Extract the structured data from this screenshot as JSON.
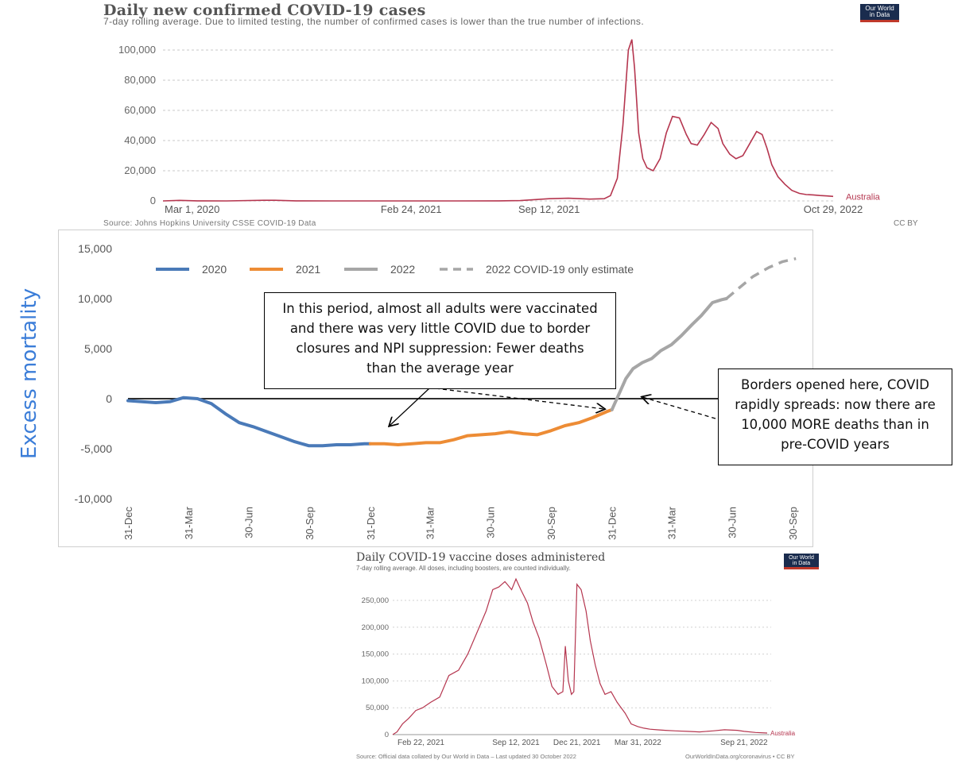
{
  "chart_data": [
    {
      "type": "line",
      "title": "Daily new confirmed COVID-19 cases",
      "subtitle": "7-day rolling average. Due to limited testing, the number of confirmed cases is lower than the true number of infections.",
      "source": "Source: Johns Hopkins University CSSE COVID-19 Data",
      "license": "CC BY",
      "logo_text": [
        "Our World",
        "in Data"
      ],
      "series_label": "Australia",
      "color": "#b5364f",
      "ylim": [
        0,
        110000
      ],
      "y_ticks": [
        0,
        20000,
        40000,
        60000,
        80000,
        100000
      ],
      "y_tick_labels": [
        "0",
        "20,000",
        "40,000",
        "60,000",
        "80,000",
        "100,000"
      ],
      "x_tick_labels": [
        "Mar 1, 2020",
        "Feb 24, 2021",
        "Sep 12, 2021",
        "Oct 29, 2022"
      ],
      "x_tick_dates": [
        "2020-03-01",
        "2021-02-24",
        "2021-09-12",
        "2022-10-29"
      ],
      "x": [
        "2020-03-01",
        "2020-03-25",
        "2020-04-20",
        "2020-06-01",
        "2020-07-25",
        "2020-08-10",
        "2020-09-10",
        "2020-11-01",
        "2021-01-10",
        "2021-03-01",
        "2021-05-01",
        "2021-07-01",
        "2021-08-01",
        "2021-09-12",
        "2021-10-10",
        "2021-11-10",
        "2021-12-01",
        "2021-12-10",
        "2021-12-20",
        "2021-12-28",
        "2022-01-05",
        "2022-01-10",
        "2022-01-14",
        "2022-01-20",
        "2022-01-26",
        "2022-02-01",
        "2022-02-10",
        "2022-02-20",
        "2022-03-01",
        "2022-03-10",
        "2022-03-20",
        "2022-03-30",
        "2022-04-06",
        "2022-04-15",
        "2022-04-25",
        "2022-05-05",
        "2022-05-15",
        "2022-05-22",
        "2022-06-01",
        "2022-06-10",
        "2022-06-20",
        "2022-06-30",
        "2022-07-10",
        "2022-07-18",
        "2022-07-25",
        "2022-08-01",
        "2022-08-10",
        "2022-08-20",
        "2022-08-30",
        "2022-09-10",
        "2022-09-20",
        "2022-09-30",
        "2022-10-10",
        "2022-10-20",
        "2022-10-29"
      ],
      "values": [
        20,
        350,
        50,
        10,
        400,
        420,
        50,
        10,
        20,
        10,
        15,
        60,
        200,
        1500,
        1800,
        1200,
        1500,
        3500,
        15000,
        50000,
        100000,
        107000,
        88000,
        45000,
        28000,
        22000,
        20000,
        28000,
        45000,
        56000,
        55000,
        44000,
        38000,
        37000,
        44000,
        52000,
        48000,
        38000,
        31000,
        28000,
        30000,
        38000,
        46000,
        44000,
        35000,
        24000,
        16000,
        11000,
        7000,
        5000,
        4200,
        4000,
        3600,
        3300,
        3000
      ]
    },
    {
      "type": "line",
      "ylabel": "Excess mortality",
      "ylim": [
        -10000,
        15000
      ],
      "y_ticks": [
        -10000,
        -5000,
        0,
        5000,
        10000,
        15000
      ],
      "y_tick_labels": [
        "-10,000",
        "-5,000",
        "0",
        "5,000",
        "10,000",
        "15,000"
      ],
      "x_tick_labels": [
        "31-Dec",
        "31-Mar",
        "30-Jun",
        "30-Sep",
        "31-Dec",
        "31-Mar",
        "30-Jun",
        "30-Sep",
        "31-Dec",
        "31-Mar",
        "30-Jun",
        "30-Sep"
      ],
      "x_tick_dates": [
        "2019-12-31",
        "2020-03-31",
        "2020-06-30",
        "2020-09-30",
        "2020-12-31",
        "2021-03-31",
        "2021-06-30",
        "2021-09-30",
        "2021-12-31",
        "2022-03-31",
        "2022-06-30",
        "2022-09-30"
      ],
      "legend_position": "top",
      "series": [
        {
          "name": "2020",
          "color": "#4a7ab8",
          "style": "solid",
          "x": [
            "2019-12-31",
            "2020-01-21",
            "2020-02-11",
            "2020-03-03",
            "2020-03-24",
            "2020-04-14",
            "2020-05-05",
            "2020-05-26",
            "2020-06-16",
            "2020-07-07",
            "2020-07-28",
            "2020-08-18",
            "2020-09-08",
            "2020-09-29",
            "2020-10-20",
            "2020-11-10",
            "2020-12-01",
            "2020-12-22",
            "2020-12-31"
          ],
          "values": [
            -200,
            -300,
            -400,
            -300,
            100,
            0,
            -500,
            -1500,
            -2400,
            -2800,
            -3300,
            -3800,
            -4300,
            -4700,
            -4700,
            -4600,
            -4600,
            -4500,
            -4500
          ]
        },
        {
          "name": "2021",
          "color": "#ed8c35",
          "style": "solid",
          "x": [
            "2020-12-31",
            "2021-01-21",
            "2021-02-11",
            "2021-03-04",
            "2021-03-25",
            "2021-04-15",
            "2021-05-06",
            "2021-05-27",
            "2021-06-17",
            "2021-07-08",
            "2021-07-29",
            "2021-08-19",
            "2021-09-09",
            "2021-09-30",
            "2021-10-21",
            "2021-11-11",
            "2021-12-02",
            "2021-12-23",
            "2021-12-31"
          ],
          "values": [
            -4500,
            -4500,
            -4600,
            -4500,
            -4400,
            -4400,
            -4100,
            -3700,
            -3600,
            -3500,
            -3300,
            -3500,
            -3600,
            -3200,
            -2700,
            -2400,
            -1900,
            -1300,
            -1100
          ]
        },
        {
          "name": "2022",
          "color": "#a6a6a6",
          "style": "solid",
          "x": [
            "2021-12-31",
            "2022-01-11",
            "2022-01-21",
            "2022-02-01",
            "2022-02-15",
            "2022-03-01",
            "2022-03-15",
            "2022-03-31",
            "2022-04-15",
            "2022-05-01",
            "2022-05-15",
            "2022-06-01",
            "2022-06-15",
            "2022-06-22"
          ],
          "values": [
            -1100,
            500,
            2000,
            3000,
            3600,
            4000,
            4800,
            5400,
            6300,
            7400,
            8300,
            9600,
            9900,
            10000
          ]
        },
        {
          "name": "2022 COVID-19 only estimate",
          "color": "#a6a6a6",
          "style": "dashed",
          "x": [
            "2022-06-22",
            "2022-07-10",
            "2022-08-01",
            "2022-08-25",
            "2022-09-15",
            "2022-10-05"
          ],
          "values": [
            10000,
            11000,
            12200,
            13100,
            13700,
            14000
          ]
        }
      ],
      "annotations": [
        "In this period, almost all adults were vaccinated and there was very little COVID due to border closures and NPI suppression: Fewer deaths than the average year",
        "Borders opened here, COVID rapidly spreads: now there are 10,000 MORE deaths than in pre-COVID years"
      ]
    },
    {
      "type": "line",
      "title": "Daily COVID-19 vaccine doses administered",
      "subtitle": "7-day rolling average. All doses, including boosters, are counted individually.",
      "source": "Source: Official data collated by Our World in Data – Last updated 30 October 2022",
      "footer_right": "OurWorldInData.org/coronavirus • CC BY",
      "logo_text": [
        "Our World",
        "in Data"
      ],
      "series_label": "Australia",
      "color": "#b5364f",
      "ylim": [
        0,
        290000
      ],
      "y_ticks": [
        0,
        50000,
        100000,
        150000,
        200000,
        250000
      ],
      "y_tick_labels": [
        "0",
        "50,000",
        "100,000",
        "150,000",
        "200,000",
        "250,000"
      ],
      "x_tick_labels": [
        "Feb 22, 2021",
        "Sep 12, 2021",
        "Dec 21, 2021",
        "Mar 31, 2022",
        "Sep 21, 2022"
      ],
      "x_tick_dates": [
        "2021-02-22",
        "2021-09-12",
        "2021-12-21",
        "2022-03-31",
        "2022-09-21"
      ],
      "x": [
        "2021-02-22",
        "2021-03-01",
        "2021-03-10",
        "2021-03-20",
        "2021-04-01",
        "2021-04-12",
        "2021-04-25",
        "2021-05-10",
        "2021-05-25",
        "2021-06-10",
        "2021-06-25",
        "2021-07-10",
        "2021-07-25",
        "2021-08-05",
        "2021-08-15",
        "2021-08-25",
        "2021-09-05",
        "2021-09-12",
        "2021-09-20",
        "2021-10-01",
        "2021-10-10",
        "2021-10-20",
        "2021-11-01",
        "2021-11-10",
        "2021-11-20",
        "2021-11-28",
        "2021-12-02",
        "2021-12-07",
        "2021-12-12",
        "2021-12-16",
        "2021-12-21",
        "2021-12-28",
        "2022-01-05",
        "2022-01-12",
        "2022-01-20",
        "2022-01-28",
        "2022-02-05",
        "2022-02-15",
        "2022-02-25",
        "2022-03-10",
        "2022-03-20",
        "2022-03-31",
        "2022-04-10",
        "2022-04-20",
        "2022-05-01",
        "2022-05-15",
        "2022-06-01",
        "2022-06-20",
        "2022-07-10",
        "2022-08-01",
        "2022-08-20",
        "2022-09-10",
        "2022-09-21",
        "2022-10-10",
        "2022-10-29"
      ],
      "values": [
        0,
        5000,
        20000,
        30000,
        45000,
        50000,
        60000,
        70000,
        110000,
        120000,
        150000,
        190000,
        230000,
        270000,
        275000,
        285000,
        270000,
        290000,
        270000,
        245000,
        210000,
        180000,
        130000,
        90000,
        75000,
        80000,
        165000,
        100000,
        75000,
        80000,
        280000,
        270000,
        230000,
        175000,
        130000,
        95000,
        75000,
        80000,
        60000,
        40000,
        20000,
        15000,
        12000,
        10000,
        9000,
        8000,
        7000,
        6000,
        5000,
        7000,
        9000,
        8000,
        6000,
        4000,
        3000
      ]
    }
  ]
}
